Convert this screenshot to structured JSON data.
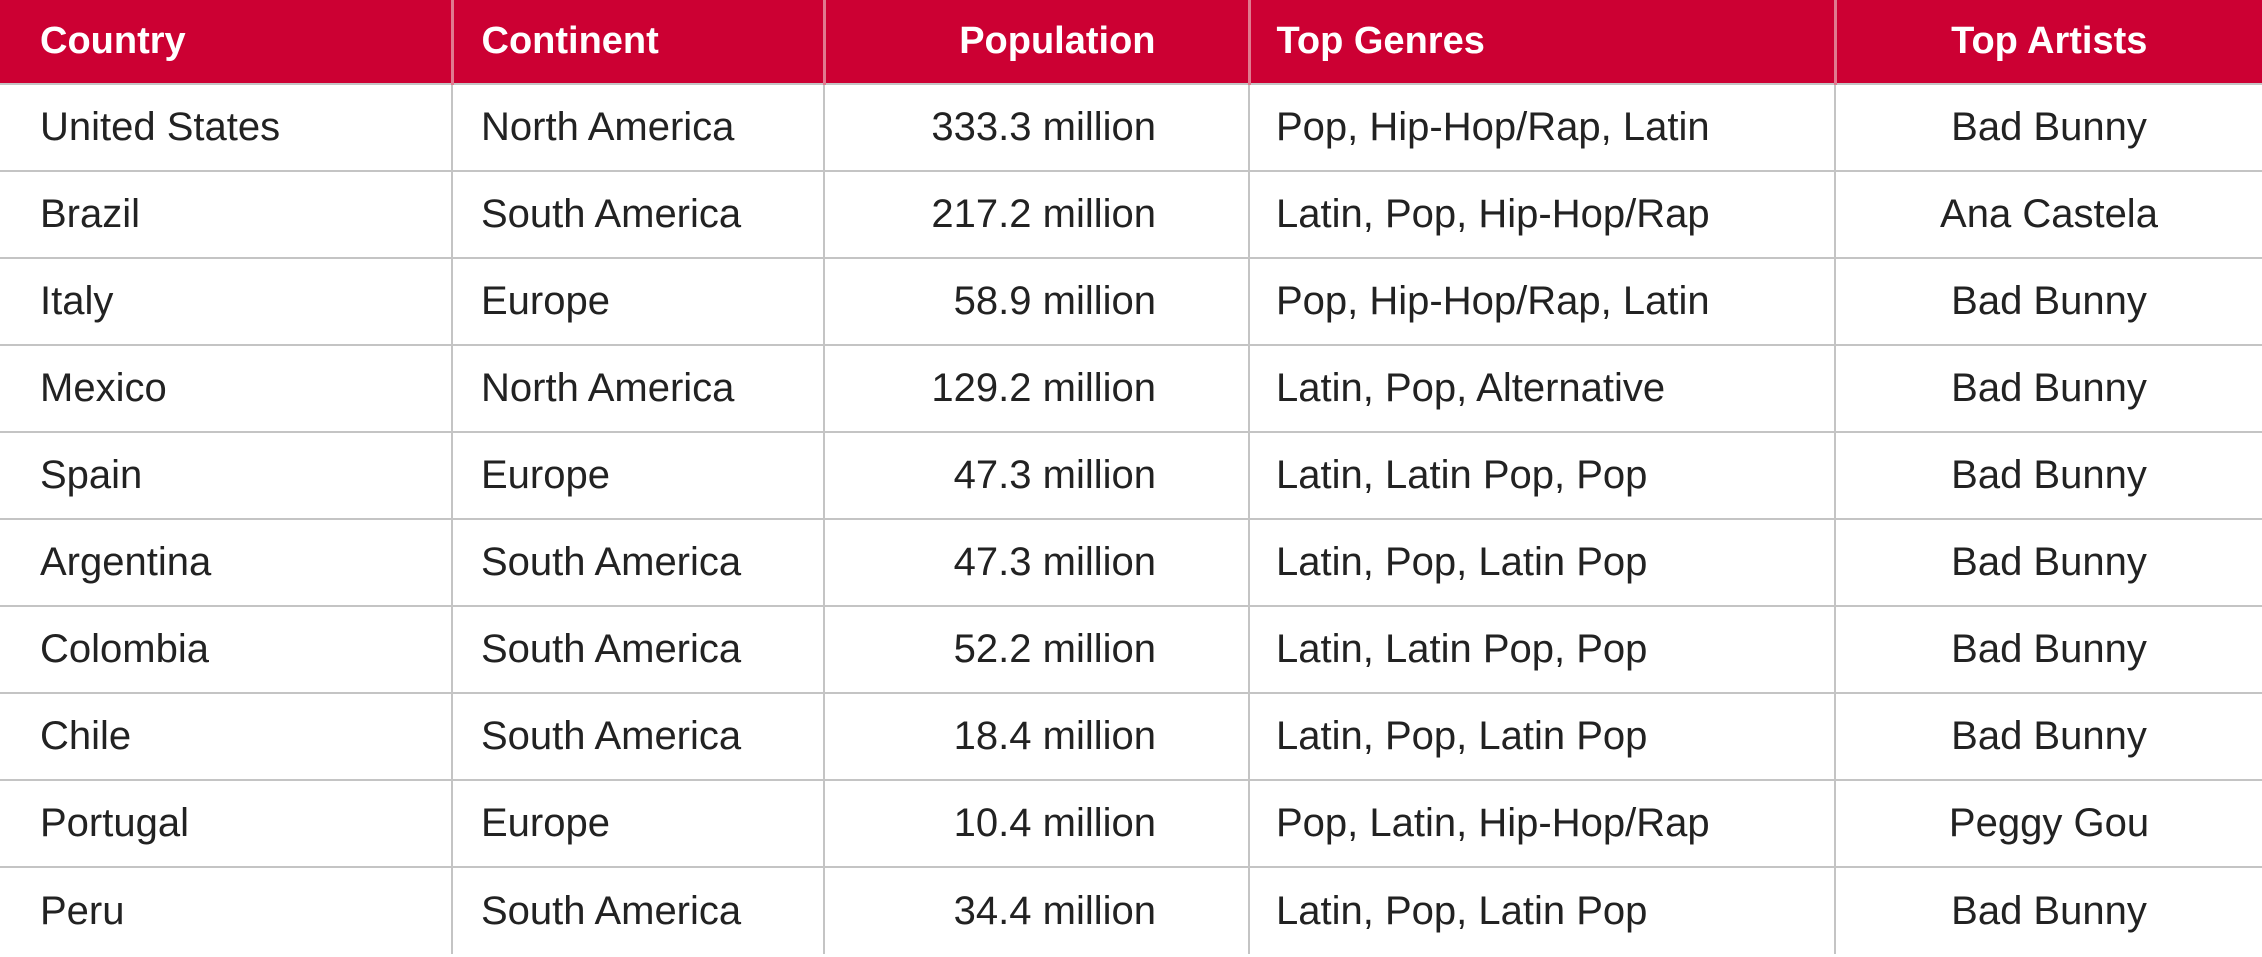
{
  "table": {
    "columns": [
      "Country",
      "Continent",
      "Population",
      "Top Genres",
      "Top Artists"
    ],
    "rows": [
      [
        "United States",
        "North America",
        "333.3 million",
        "Pop, Hip-Hop/Rap, Latin",
        "Bad Bunny"
      ],
      [
        "Brazil",
        "South America",
        "217.2 million",
        "Latin, Pop, Hip-Hop/Rap",
        "Ana Castela"
      ],
      [
        "Italy",
        "Europe",
        "58.9 million",
        "Pop, Hip-Hop/Rap, Latin",
        "Bad Bunny"
      ],
      [
        "Mexico",
        "North America",
        "129.2 million",
        "Latin, Pop, Alternative",
        "Bad Bunny"
      ],
      [
        "Spain",
        "Europe",
        "47.3 million",
        "Latin, Latin Pop, Pop",
        "Bad Bunny"
      ],
      [
        "Argentina",
        "South America",
        "47.3 million",
        "Latin, Pop, Latin Pop",
        "Bad Bunny"
      ],
      [
        "Colombia",
        "South America",
        "52.2 million",
        "Latin, Latin Pop, Pop",
        "Bad Bunny"
      ],
      [
        "Chile",
        "South America",
        "18.4 million",
        "Latin, Pop, Latin Pop",
        "Bad Bunny"
      ],
      [
        "Portugal",
        "Europe",
        "10.4 million",
        "Pop, Latin, Hip-Hop/Rap",
        "Peggy Gou"
      ],
      [
        "Peru",
        "South America",
        "34.4 million",
        "Latin, Pop, Latin Pop",
        "Bad Bunny"
      ]
    ]
  }
}
